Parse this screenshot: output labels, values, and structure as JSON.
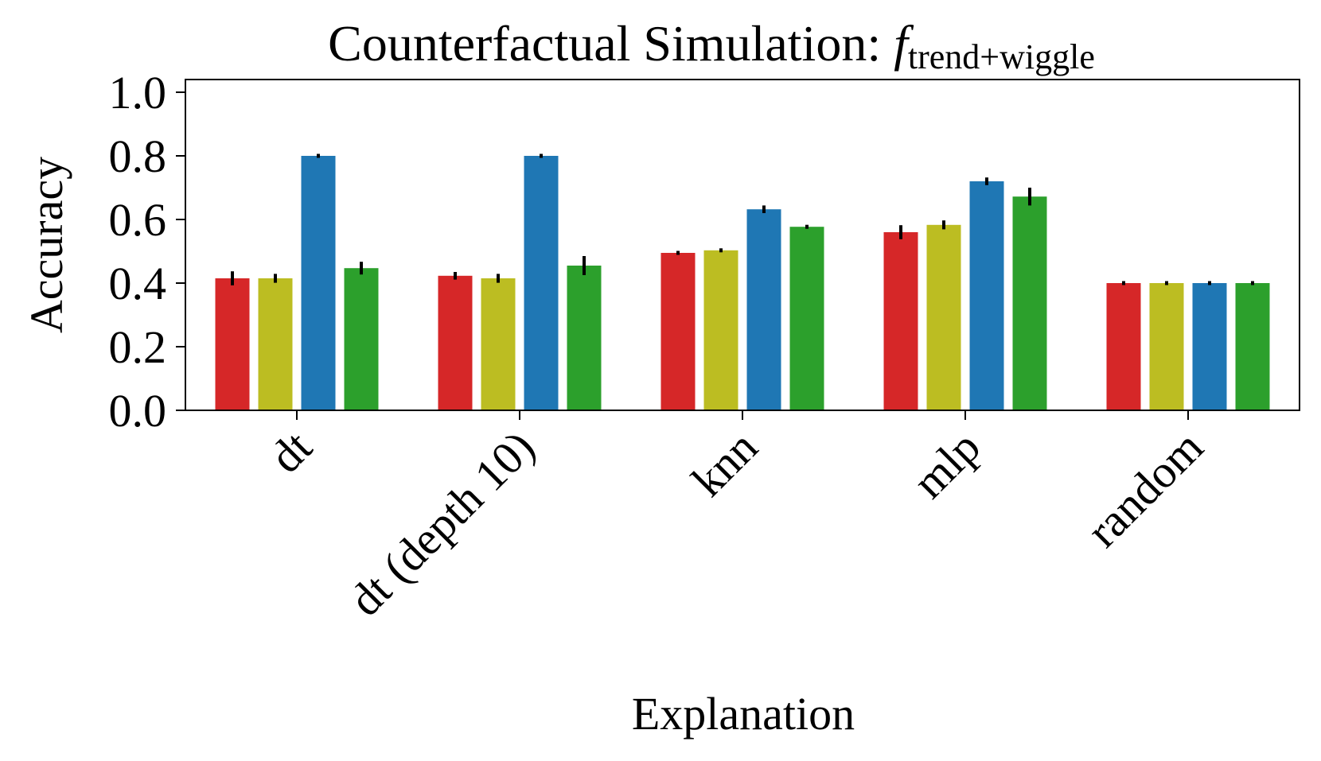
{
  "chart_data": {
    "type": "bar",
    "title": "Counterfactual Simulation: ",
    "title_math": "f",
    "title_subscript": "trend+wiggle",
    "xlabel": "Explanation",
    "ylabel": "Accuracy",
    "ylim": [
      0,
      1.04
    ],
    "yticks": [
      "0.0",
      "0.2",
      "0.4",
      "0.6",
      "0.8",
      "1.0"
    ],
    "grid": false,
    "categories": [
      "dt",
      "dt (depth 10)",
      "knn",
      "mlp",
      "random"
    ],
    "series": [
      {
        "color": "#d62728",
        "values": [
          0.415,
          0.423,
          0.495,
          0.56,
          0.4
        ],
        "errors": [
          0.022,
          0.012,
          0.006,
          0.022,
          0.005
        ]
      },
      {
        "color": "#bcbd22",
        "values": [
          0.415,
          0.415,
          0.503,
          0.583,
          0.4
        ],
        "errors": [
          0.014,
          0.014,
          0.005,
          0.014,
          0.005
        ]
      },
      {
        "color": "#1f77b4",
        "values": [
          0.8,
          0.8,
          0.632,
          0.72,
          0.4
        ],
        "errors": [
          0.0,
          0.0,
          0.012,
          0.012,
          0.005
        ]
      },
      {
        "color": "#2ca02c",
        "values": [
          0.447,
          0.455,
          0.577,
          0.672,
          0.4
        ],
        "errors": [
          0.02,
          0.03,
          0.005,
          0.028,
          0.005
        ]
      }
    ]
  }
}
